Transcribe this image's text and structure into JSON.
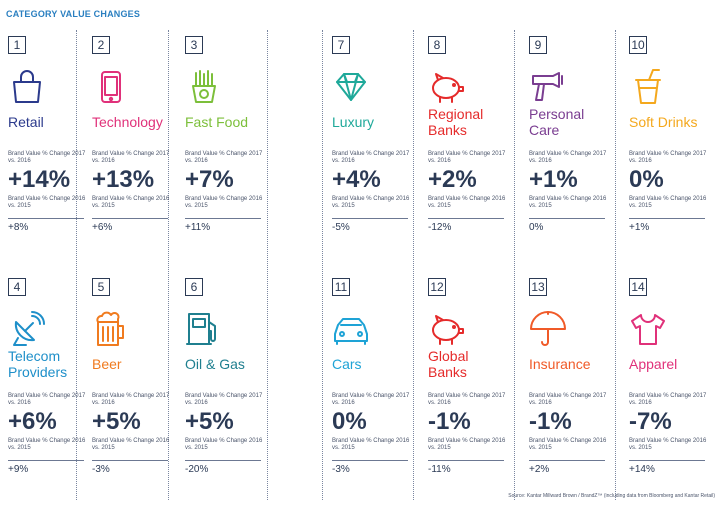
{
  "title": "CATEGORY VALUE CHANGES",
  "label_2017": "Brand Value % Change 2017 vs. 2016",
  "label_2016": "Brand Value % Change 2016 vs. 2015",
  "source": "Source: Kantar Millward Brown / BrandZ™ (including data from Bloomberg and Kantar Retail)",
  "categories": [
    {
      "rank": "1",
      "name": "Retail",
      "color": "#2b3a8c",
      "icon": "shopping-bag-icon",
      "change_2017": "+14%",
      "change_2016": "+8%"
    },
    {
      "rank": "2",
      "name": "Technology",
      "color": "#e0317a",
      "icon": "smartphone-icon",
      "change_2017": "+13%",
      "change_2016": "+6%"
    },
    {
      "rank": "3",
      "name": "Fast Food",
      "color": "#7cbf3a",
      "icon": "fries-icon",
      "change_2017": "+7%",
      "change_2016": "+11%"
    },
    {
      "rank": "7",
      "name": "Luxury",
      "color": "#1fa99a",
      "icon": "diamond-icon",
      "change_2017": "+4%",
      "change_2016": "-5%"
    },
    {
      "rank": "8",
      "name": "Regional Banks",
      "color": "#e52b2b",
      "icon": "piggy-bank-icon",
      "change_2017": "+2%",
      "change_2016": "-12%"
    },
    {
      "rank": "9",
      "name": "Personal Care",
      "color": "#7a3d91",
      "icon": "hair-dryer-icon",
      "change_2017": "+1%",
      "change_2016": "0%"
    },
    {
      "rank": "10",
      "name": "Soft Drinks",
      "color": "#f4a81d",
      "icon": "soft-drink-cup-icon",
      "change_2017": "0%",
      "change_2016": "+1%"
    },
    {
      "rank": "4",
      "name": "Telecom Providers",
      "color": "#1e8fc9",
      "icon": "satellite-dish-icon",
      "change_2017": "+6%",
      "change_2016": "+9%"
    },
    {
      "rank": "5",
      "name": "Beer",
      "color": "#f07b1f",
      "icon": "beer-mug-icon",
      "change_2017": "+5%",
      "change_2016": "-3%"
    },
    {
      "rank": "6",
      "name": "Oil & Gas",
      "color": "#1f7f8f",
      "icon": "fuel-pump-icon",
      "change_2017": "+5%",
      "change_2016": "-20%"
    },
    {
      "rank": "11",
      "name": "Cars",
      "color": "#1ea3d6",
      "icon": "car-icon",
      "change_2017": "0%",
      "change_2016": "-3%"
    },
    {
      "rank": "12",
      "name": "Global Banks",
      "color": "#e52b2b",
      "icon": "piggy-bank-icon",
      "change_2017": "-1%",
      "change_2016": "-11%"
    },
    {
      "rank": "13",
      "name": "Insurance",
      "color": "#f05a28",
      "icon": "umbrella-icon",
      "change_2017": "-1%",
      "change_2016": "+2%"
    },
    {
      "rank": "14",
      "name": "Apparel",
      "color": "#e0317a",
      "icon": "t-shirt-icon",
      "change_2017": "-7%",
      "change_2016": "+14%"
    }
  ]
}
